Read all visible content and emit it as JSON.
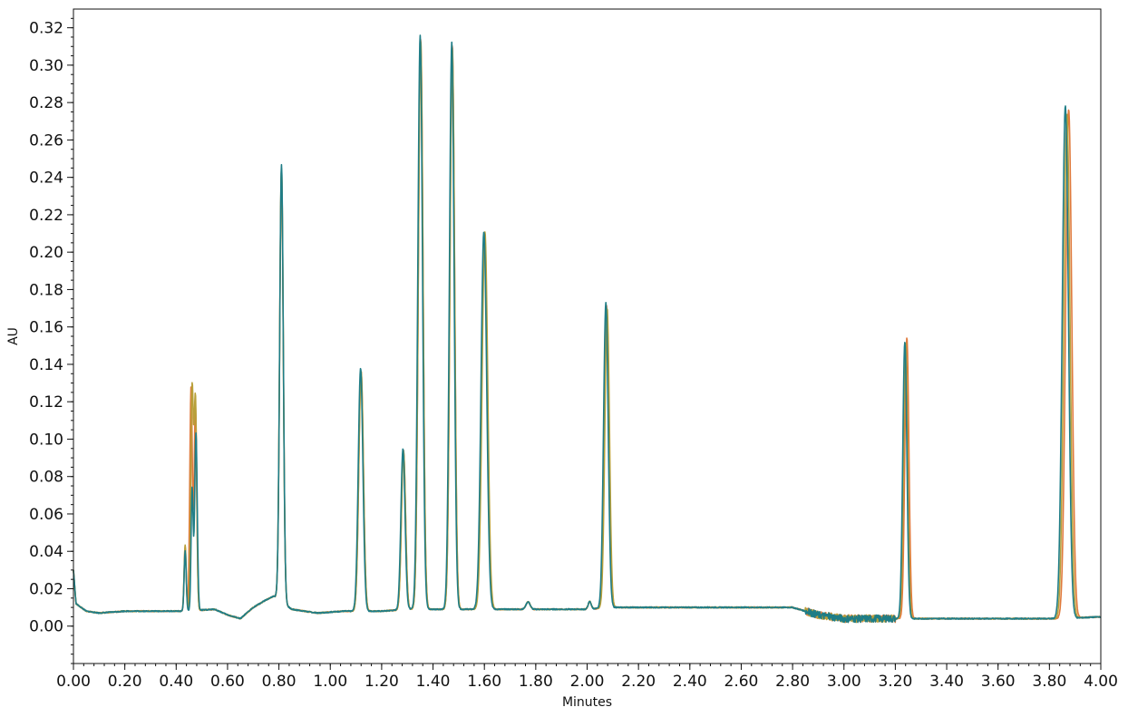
{
  "chart_data": {
    "type": "line",
    "title": "",
    "xlabel": "Minutes",
    "ylabel": "AU",
    "xlim": [
      0.0,
      4.0
    ],
    "ylim": [
      -0.02,
      0.33
    ],
    "grid": false,
    "legend": "none",
    "x_ticks": [
      "0.00",
      "0.20",
      "0.40",
      "0.60",
      "0.80",
      "1.00",
      "1.20",
      "1.40",
      "1.60",
      "1.80",
      "2.00",
      "2.20",
      "2.40",
      "2.60",
      "2.80",
      "3.00",
      "3.20",
      "3.40",
      "3.60",
      "3.80",
      "4.00"
    ],
    "y_ticks": [
      "0.00",
      "0.02",
      "0.04",
      "0.06",
      "0.08",
      "0.10",
      "0.12",
      "0.14",
      "0.16",
      "0.18",
      "0.20",
      "0.22",
      "0.24",
      "0.26",
      "0.28",
      "0.30",
      "0.32"
    ],
    "series": [
      {
        "color": "#e07a3c",
        "baseline": [
          [
            0.0,
            0.03
          ],
          [
            0.01,
            0.012
          ],
          [
            0.05,
            0.008
          ],
          [
            0.1,
            0.007
          ],
          [
            0.2,
            0.008
          ],
          [
            0.3,
            0.008
          ],
          [
            0.42,
            0.008
          ],
          [
            0.55,
            0.009
          ],
          [
            0.6,
            0.006
          ],
          [
            0.65,
            0.004
          ],
          [
            0.7,
            0.01
          ],
          [
            0.75,
            0.014
          ],
          [
            0.78,
            0.016
          ],
          [
            0.85,
            0.009
          ],
          [
            0.95,
            0.007
          ],
          [
            1.05,
            0.008
          ],
          [
            1.2,
            0.008
          ],
          [
            1.3,
            0.009
          ],
          [
            1.8,
            0.009
          ],
          [
            2.0,
            0.009
          ],
          [
            2.1,
            0.01
          ],
          [
            2.4,
            0.01
          ],
          [
            2.8,
            0.01
          ],
          [
            2.9,
            0.006
          ],
          [
            3.0,
            0.004
          ],
          [
            3.2,
            0.004
          ],
          [
            3.4,
            0.004
          ],
          [
            3.6,
            0.004
          ],
          [
            3.85,
            0.004
          ],
          [
            4.0,
            0.005
          ]
        ],
        "peaks": [
          {
            "rt": 0.435,
            "height": 0.035,
            "width": 0.004
          },
          {
            "rt": 0.458,
            "height": 0.12,
            "width": 0.005
          },
          {
            "rt": 0.475,
            "height": 0.11,
            "width": 0.005
          },
          {
            "rt": 0.81,
            "height": 0.23,
            "width": 0.007
          },
          {
            "rt": 1.12,
            "height": 0.128,
            "width": 0.009
          },
          {
            "rt": 1.285,
            "height": 0.085,
            "width": 0.008
          },
          {
            "rt": 1.352,
            "height": 0.305,
            "width": 0.009
          },
          {
            "rt": 1.475,
            "height": 0.302,
            "width": 0.009
          },
          {
            "rt": 1.6,
            "height": 0.2,
            "width": 0.011
          },
          {
            "rt": 1.77,
            "height": 0.004,
            "width": 0.008
          },
          {
            "rt": 2.01,
            "height": 0.004,
            "width": 0.006
          },
          {
            "rt": 2.075,
            "height": 0.162,
            "width": 0.009
          },
          {
            "rt": 3.245,
            "height": 0.15,
            "width": 0.008
          },
          {
            "rt": 3.875,
            "height": 0.272,
            "width": 0.012
          }
        ]
      },
      {
        "color": "#b8a03a",
        "baseline": [
          [
            0.0,
            0.03
          ],
          [
            0.01,
            0.012
          ],
          [
            0.05,
            0.008
          ],
          [
            0.1,
            0.007
          ],
          [
            0.2,
            0.008
          ],
          [
            0.3,
            0.008
          ],
          [
            0.42,
            0.008
          ],
          [
            0.55,
            0.009
          ],
          [
            0.6,
            0.006
          ],
          [
            0.65,
            0.004
          ],
          [
            0.7,
            0.01
          ],
          [
            0.75,
            0.014
          ],
          [
            0.78,
            0.016
          ],
          [
            0.85,
            0.009
          ],
          [
            0.95,
            0.007
          ],
          [
            1.05,
            0.008
          ],
          [
            1.2,
            0.008
          ],
          [
            1.3,
            0.009
          ],
          [
            1.8,
            0.009
          ],
          [
            2.0,
            0.009
          ],
          [
            2.1,
            0.01
          ],
          [
            2.4,
            0.01
          ],
          [
            2.8,
            0.01
          ],
          [
            2.9,
            0.006
          ],
          [
            3.0,
            0.004
          ],
          [
            3.2,
            0.004
          ],
          [
            3.4,
            0.004
          ],
          [
            3.6,
            0.004
          ],
          [
            3.85,
            0.004
          ],
          [
            4.0,
            0.005
          ]
        ],
        "peaks": [
          {
            "rt": 0.435,
            "height": 0.035,
            "width": 0.004
          },
          {
            "rt": 0.462,
            "height": 0.118,
            "width": 0.005
          },
          {
            "rt": 0.475,
            "height": 0.112,
            "width": 0.005
          },
          {
            "rt": 0.81,
            "height": 0.232,
            "width": 0.007
          },
          {
            "rt": 1.12,
            "height": 0.128,
            "width": 0.009
          },
          {
            "rt": 1.285,
            "height": 0.085,
            "width": 0.008
          },
          {
            "rt": 1.352,
            "height": 0.304,
            "width": 0.009
          },
          {
            "rt": 1.475,
            "height": 0.3,
            "width": 0.009
          },
          {
            "rt": 1.602,
            "height": 0.202,
            "width": 0.011
          },
          {
            "rt": 1.77,
            "height": 0.004,
            "width": 0.008
          },
          {
            "rt": 2.01,
            "height": 0.004,
            "width": 0.006
          },
          {
            "rt": 2.078,
            "height": 0.16,
            "width": 0.009
          },
          {
            "rt": 3.24,
            "height": 0.147,
            "width": 0.008
          },
          {
            "rt": 3.868,
            "height": 0.27,
            "width": 0.012
          }
        ]
      },
      {
        "color": "#1f7d86",
        "baseline": [
          [
            0.0,
            0.03
          ],
          [
            0.01,
            0.012
          ],
          [
            0.05,
            0.008
          ],
          [
            0.1,
            0.007
          ],
          [
            0.2,
            0.008
          ],
          [
            0.3,
            0.008
          ],
          [
            0.42,
            0.008
          ],
          [
            0.55,
            0.009
          ],
          [
            0.6,
            0.006
          ],
          [
            0.65,
            0.004
          ],
          [
            0.7,
            0.01
          ],
          [
            0.75,
            0.014
          ],
          [
            0.78,
            0.016
          ],
          [
            0.85,
            0.009
          ],
          [
            0.95,
            0.007
          ],
          [
            1.05,
            0.008
          ],
          [
            1.2,
            0.008
          ],
          [
            1.3,
            0.009
          ],
          [
            1.8,
            0.009
          ],
          [
            2.0,
            0.009
          ],
          [
            2.1,
            0.01
          ],
          [
            2.4,
            0.01
          ],
          [
            2.8,
            0.01
          ],
          [
            2.9,
            0.006
          ],
          [
            3.0,
            0.004
          ],
          [
            3.2,
            0.004
          ],
          [
            3.4,
            0.004
          ],
          [
            3.6,
            0.004
          ],
          [
            3.85,
            0.004
          ],
          [
            4.0,
            0.005
          ]
        ],
        "peaks": [
          {
            "rt": 0.435,
            "height": 0.032,
            "width": 0.004
          },
          {
            "rt": 0.462,
            "height": 0.065,
            "width": 0.004
          },
          {
            "rt": 0.477,
            "height": 0.095,
            "width": 0.005
          },
          {
            "rt": 0.81,
            "height": 0.234,
            "width": 0.007
          },
          {
            "rt": 1.118,
            "height": 0.13,
            "width": 0.009
          },
          {
            "rt": 1.283,
            "height": 0.086,
            "width": 0.008
          },
          {
            "rt": 1.35,
            "height": 0.307,
            "width": 0.009
          },
          {
            "rt": 1.473,
            "height": 0.303,
            "width": 0.009
          },
          {
            "rt": 1.598,
            "height": 0.202,
            "width": 0.011
          },
          {
            "rt": 1.77,
            "height": 0.004,
            "width": 0.008
          },
          {
            "rt": 2.01,
            "height": 0.004,
            "width": 0.006
          },
          {
            "rt": 2.073,
            "height": 0.163,
            "width": 0.009
          },
          {
            "rt": 3.237,
            "height": 0.148,
            "width": 0.008
          },
          {
            "rt": 3.862,
            "height": 0.274,
            "width": 0.012
          }
        ]
      }
    ]
  }
}
